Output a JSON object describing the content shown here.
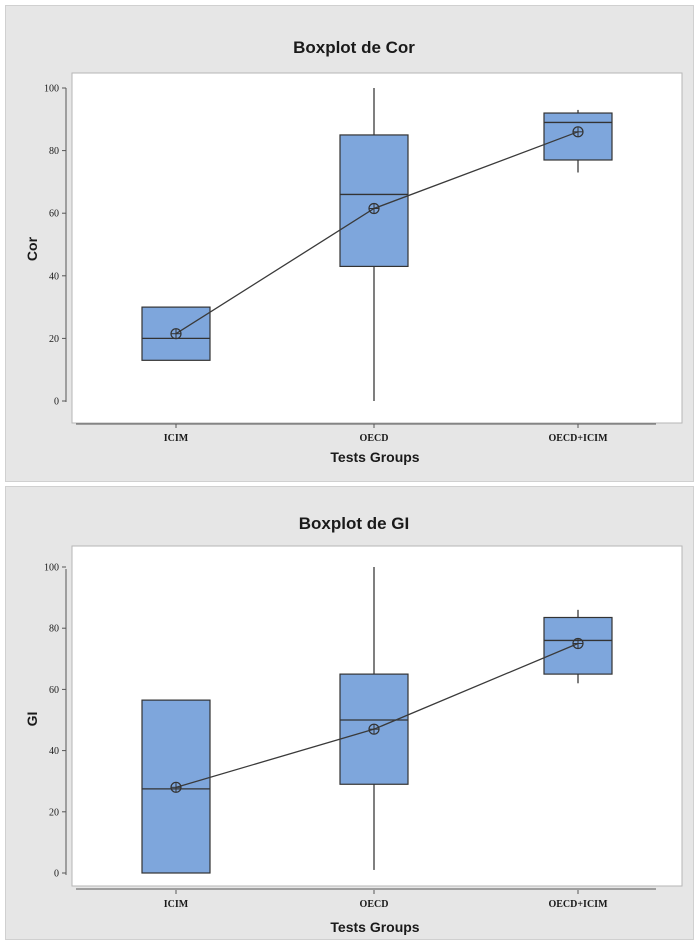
{
  "chart_data": [
    {
      "type": "boxplot",
      "title": "Boxplot de Cor",
      "xlabel": "Tests Groups",
      "ylabel": "Cor",
      "ylim": [
        -2,
        103
      ],
      "yticks": [
        0,
        20,
        40,
        60,
        80,
        100
      ],
      "categories": [
        "ICIM",
        "OECD",
        "OECD+ICIM"
      ],
      "boxes": [
        {
          "min": 13,
          "q1": 13,
          "median": 20,
          "q3": 30,
          "max": 30,
          "mean": 21.5
        },
        {
          "min": 0,
          "q1": 43,
          "median": 66,
          "q3": 85,
          "max": 100,
          "mean": 61.5
        },
        {
          "min": 73,
          "q1": 77,
          "median": 89,
          "q3": 92,
          "max": 93,
          "mean": 86
        }
      ],
      "mean_connect_line": true,
      "colors": {
        "box": "#7ea6dc",
        "line": "#3a3a3a",
        "panel": "#e6e6e6",
        "plot": "#ffffff"
      }
    },
    {
      "type": "boxplot",
      "title": "Boxplot de GI",
      "xlabel": "Tests Groups",
      "ylabel": "GI",
      "ylim": [
        -2,
        103
      ],
      "yticks": [
        0,
        20,
        40,
        60,
        80,
        100
      ],
      "categories": [
        "ICIM",
        "OECD",
        "OECD+ICIM"
      ],
      "boxes": [
        {
          "min": 0,
          "q1": 0,
          "median": 27.5,
          "q3": 56.5,
          "max": 56.5,
          "mean": 28
        },
        {
          "min": 1,
          "q1": 29,
          "median": 50,
          "q3": 65,
          "max": 100,
          "mean": 47
        },
        {
          "min": 62,
          "q1": 65,
          "median": 76,
          "q3": 83.5,
          "max": 86,
          "mean": 75
        }
      ],
      "mean_connect_line": true,
      "colors": {
        "box": "#7ea6dc",
        "line": "#3a3a3a",
        "panel": "#e6e6e6",
        "plot": "#ffffff"
      }
    }
  ]
}
